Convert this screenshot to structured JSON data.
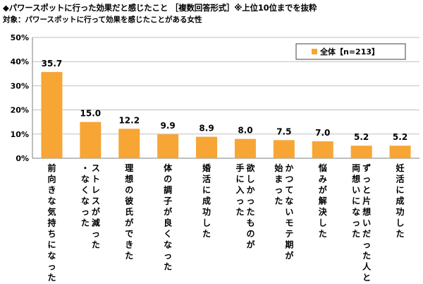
{
  "title": "◆パワースポットに行った効果だと感じたこと ［複数回答形式］※上位10位までを抜粋",
  "subtitle": "対象：パワースポットに行って効果を感じたことがある女性",
  "colors": {
    "bar": "#F7A535",
    "grid": "#BFBFBF",
    "axis": "#7F7F7F"
  },
  "chart_data": {
    "type": "bar",
    "title": "◆パワースポットに行った効果だと感じたこと ［複数回答形式］※上位10位までを抜粋",
    "subtitle": "対象：パワースポットに行って効果を感じたことがある女性",
    "categories": [
      [
        "前向きな気持ちになった"
      ],
      [
        "ストレスが減った",
        "・なくなった"
      ],
      [
        "理想の彼氏ができた"
      ],
      [
        "体の調子が良くなった"
      ],
      [
        "婚活に成功した"
      ],
      [
        "欲しかったものが",
        "手に入った"
      ],
      [
        "かつてないモテ期が",
        "始まった"
      ],
      [
        "悩みが解決した"
      ],
      [
        "ずっと片想いだった人と",
        "両想いになった"
      ],
      [
        "妊活に成功した"
      ]
    ],
    "series": [
      {
        "name": "全体【n=213】",
        "values": [
          35.7,
          15.0,
          12.2,
          9.9,
          8.9,
          8.0,
          7.5,
          7.0,
          5.2,
          5.2
        ]
      }
    ],
    "value_labels": [
      "35.7",
      "15.0",
      "12.2",
      "9.9",
      "8.9",
      "8.0",
      "7.5",
      "7.0",
      "5.2",
      "5.2"
    ],
    "ylim": [
      0,
      50
    ],
    "yticks": [
      "0%",
      "10%",
      "20%",
      "30%",
      "40%",
      "50%"
    ],
    "xlabel": "",
    "ylabel": "",
    "legend": "top-right",
    "grid": true
  }
}
